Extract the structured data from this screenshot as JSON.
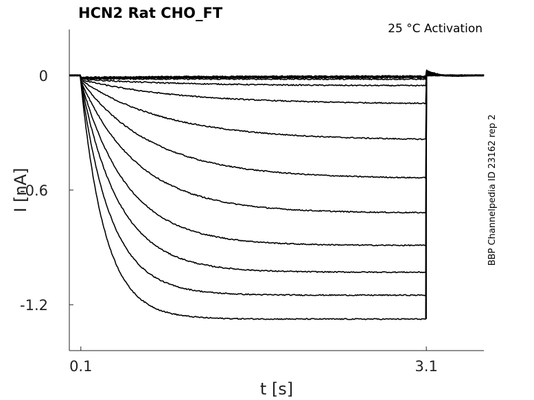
{
  "chart_data": {
    "type": "line",
    "title": "HCN2  Rat  CHO_FT",
    "annotation": "25 °C  Activation",
    "side_label": "BBP Channelpedia ID 23162 rep 2",
    "xlabel": "t [s]",
    "ylabel": "I [nA]",
    "xlim": [
      0.0,
      3.6
    ],
    "ylim": [
      -1.44,
      0.24
    ],
    "x_ticks": [
      0.1,
      3.1
    ],
    "x_tick_labels": [
      "0.1",
      "3.1"
    ],
    "y_ticks": [
      0,
      -0.6,
      -1.2
    ],
    "y_tick_labels": [
      "0",
      "-0.6",
      "-1.2"
    ],
    "grid": false,
    "step_start": 0.1,
    "step_end": 3.1,
    "series": [
      {
        "steady": -0.003,
        "tau": 1.2,
        "tail": 0.028
      },
      {
        "steady": -0.005,
        "tau": 1.2,
        "tail": 0.024
      },
      {
        "steady": -0.008,
        "tau": 1.1,
        "tail": 0.02
      },
      {
        "steady": -0.012,
        "tau": 1.0,
        "tail": 0.016
      },
      {
        "steady": -0.02,
        "tau": 0.95,
        "tail": 0.012
      },
      {
        "steady": -0.055,
        "tau": 0.9,
        "tail": 0.008
      },
      {
        "steady": -0.15,
        "tau": 0.85,
        "tail": 0.004
      },
      {
        "steady": -0.34,
        "tau": 0.75,
        "tail": 0.0
      },
      {
        "steady": -0.54,
        "tau": 0.62,
        "tail": 0.0
      },
      {
        "steady": -0.72,
        "tau": 0.5,
        "tail": 0.0
      },
      {
        "steady": -0.89,
        "tau": 0.4,
        "tail": 0.0
      },
      {
        "steady": -1.03,
        "tau": 0.33,
        "tail": 0.0
      },
      {
        "steady": -1.15,
        "tau": 0.26,
        "tail": 0.0
      },
      {
        "steady": -1.275,
        "tau": 0.21,
        "tail": 0.0
      }
    ]
  }
}
